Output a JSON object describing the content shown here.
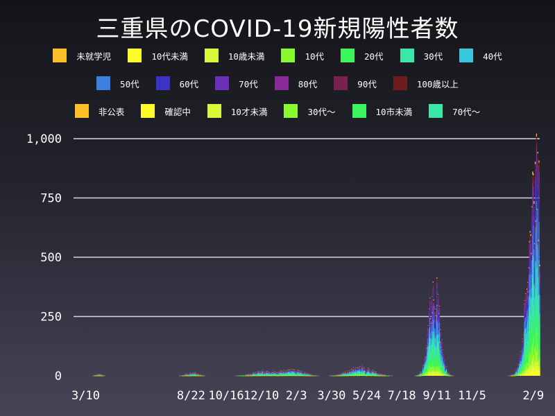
{
  "title": "三重県のCOVID-19新規陽性者数",
  "legend": [
    {
      "label": "未就学児",
      "color": "#fbbf2a"
    },
    {
      "label": "10代未満",
      "color": "#fefb2b"
    },
    {
      "label": "10歳未満",
      "color": "#d8f936"
    },
    {
      "label": "10代",
      "color": "#88f931"
    },
    {
      "label": "20代",
      "color": "#3cf55c"
    },
    {
      "label": "30代",
      "color": "#3ae7a7"
    },
    {
      "label": "40代",
      "color": "#37c8d9"
    },
    {
      "label": "50代",
      "color": "#3b7fe2"
    },
    {
      "label": "60代",
      "color": "#3b33c8"
    },
    {
      "label": "70代",
      "color": "#6a30b8"
    },
    {
      "label": "80代",
      "color": "#8a2a98"
    },
    {
      "label": "90代",
      "color": "#7a2150"
    },
    {
      "label": "100歳以上",
      "color": "#6e1c1c"
    },
    {
      "label": "非公表",
      "color": "#fbbf2a"
    },
    {
      "label": "確認中",
      "color": "#fefb2b"
    },
    {
      "label": "10才未満",
      "color": "#d8f936"
    },
    {
      "label": "30代〜",
      "color": "#88f931"
    },
    {
      "label": "10市未満",
      "color": "#3cf55c"
    },
    {
      "label": "70代〜",
      "color": "#3ae7a7"
    }
  ],
  "chart_data": {
    "type": "bar",
    "stacked": true,
    "ylim": [
      0,
      1000
    ],
    "yticks": [
      "0",
      "250",
      "500",
      "750",
      "1,000"
    ],
    "ytick_values": [
      0,
      250,
      500,
      750,
      1000
    ],
    "xticks": [
      "3/10",
      "8/22",
      "10/16",
      "12/10",
      "2/3",
      "3/30",
      "5/24",
      "7/18",
      "9/11",
      "11/5",
      "2/9"
    ],
    "xtick_days": [
      19,
      184,
      239,
      294,
      349,
      404,
      459,
      514,
      569,
      624,
      720
    ],
    "x_range_days": [
      0,
      730
    ],
    "grid": true,
    "waves": [
      {
        "peak_day": 40,
        "width": 6,
        "peak": 8
      },
      {
        "peak_day": 186,
        "width": 12,
        "peak": 14
      },
      {
        "peak_day": 300,
        "width": 25,
        "peak": 22
      },
      {
        "peak_day": 345,
        "width": 20,
        "peak": 30
      },
      {
        "peak_day": 450,
        "width": 25,
        "peak": 40
      },
      {
        "peak_day": 565,
        "width": 12,
        "peak": 420
      },
      {
        "peak_day": 724,
        "width": 16,
        "peak": 990
      }
    ]
  }
}
